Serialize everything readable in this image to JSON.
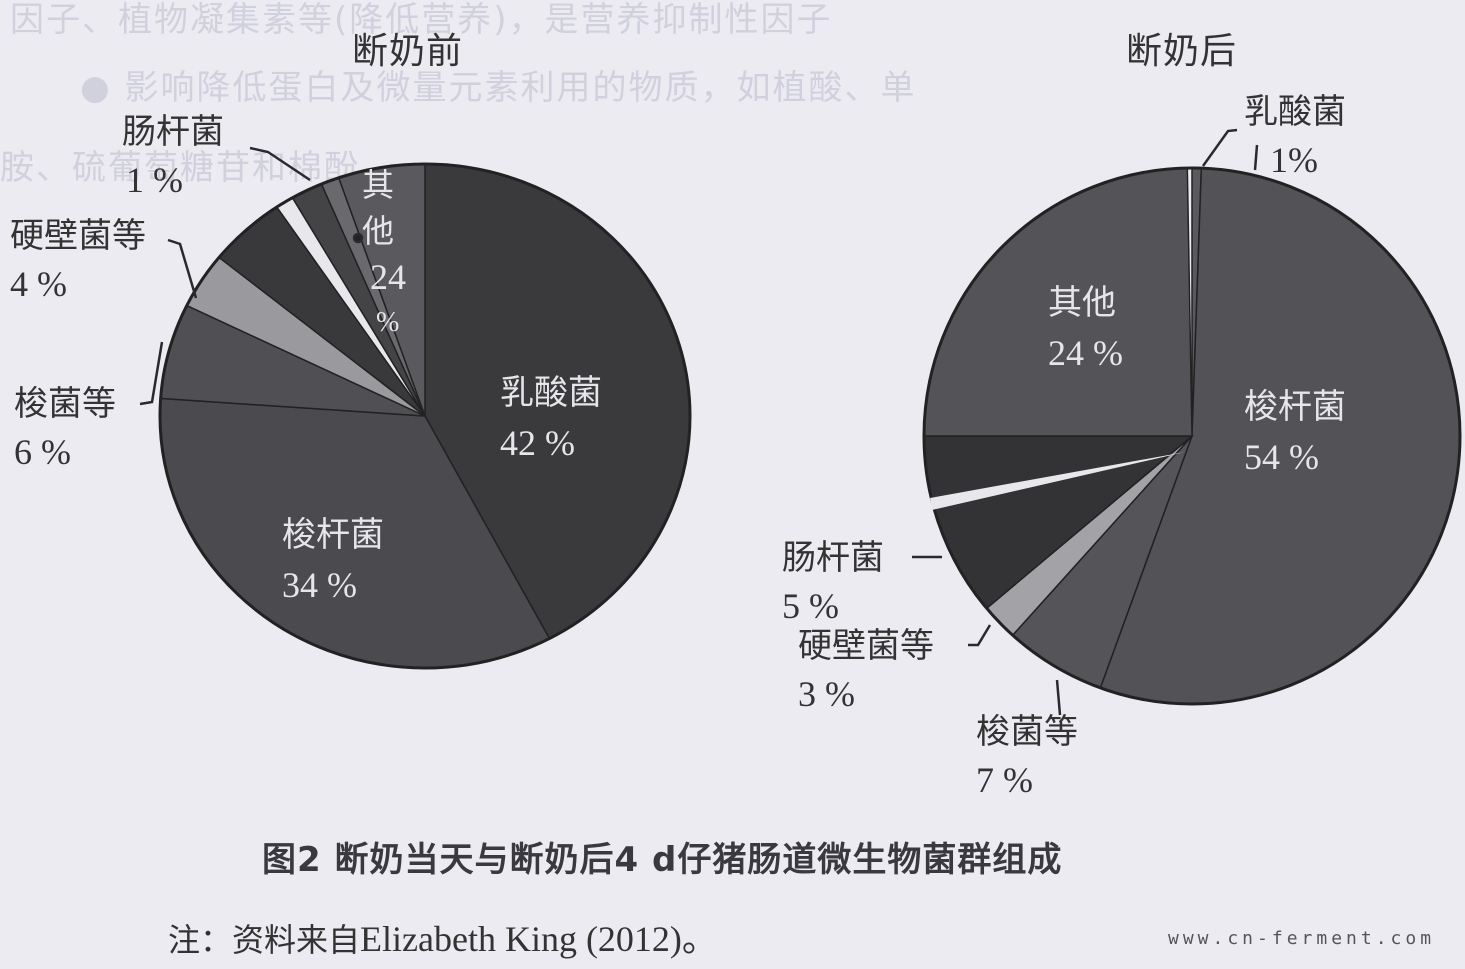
{
  "figure": {
    "caption": "图2 断奶当天与断奶后4 d仔猪肠道微生物菌群组成",
    "note_prefix": "注：资料来自",
    "note_source": "Elizabeth King (2012)。",
    "watermark": "www.cn-ferment.com"
  },
  "chart_data": [
    {
      "type": "pie",
      "title": "断奶前",
      "slices": [
        {
          "label": "乳酸菌",
          "value": 42,
          "value_label": "42 %",
          "color": "#3a3a3d",
          "start_deg": 0,
          "end_deg": 152
        },
        {
          "label": "梭杆菌",
          "value": 34,
          "value_label": "34 %",
          "color": "#4b4a4e",
          "start_deg": 152,
          "end_deg": 274
        },
        {
          "label": "梭菌等",
          "value": 6,
          "value_label": "6 %",
          "color": "#505054",
          "start_deg": 274,
          "end_deg": 296
        },
        {
          "label": "硬壁菌等",
          "value": 4,
          "value_label": "4 %",
          "color": "#9a9a9e",
          "start_deg": 296,
          "end_deg": 309
        },
        {
          "label": "",
          "value": null,
          "value_label": "",
          "color": "#39393c",
          "start_deg": 309,
          "end_deg": 326
        },
        {
          "label": "肠杆菌",
          "value": 1,
          "value_label": "1 %",
          "color": "#e8e8ec",
          "start_deg": 326,
          "end_deg": 330
        },
        {
          "label": "",
          "value": null,
          "value_label": "",
          "color": "#444447",
          "start_deg": 330,
          "end_deg": 337
        },
        {
          "label": "",
          "value": null,
          "value_label": "",
          "color": "#6a6a6e",
          "start_deg": 337,
          "end_deg": 341
        },
        {
          "label": "其他",
          "value": 24,
          "value_label": "24 %",
          "color": "#5a5a5e",
          "start_deg": 341,
          "end_deg": 360
        }
      ]
    },
    {
      "type": "pie",
      "title": "断奶后",
      "slices": [
        {
          "label": "乳酸菌",
          "value": 1,
          "value_label": "1%",
          "color": "#5a5a5e",
          "start_deg": 0,
          "end_deg": 2
        },
        {
          "label": "梭杆菌",
          "value": 54,
          "value_label": "54 %",
          "color": "#535357",
          "start_deg": 2,
          "end_deg": 200
        },
        {
          "label": "梭菌等",
          "value": 7,
          "value_label": "7 %",
          "color": "#555559",
          "start_deg": 200,
          "end_deg": 222
        },
        {
          "label": "硬壁菌等",
          "value": 3,
          "value_label": "3 %",
          "color": "#a3a3a7",
          "start_deg": 222,
          "end_deg": 230
        },
        {
          "label": "肠杆菌",
          "value": 5,
          "value_label": "5 %",
          "color": "#333336",
          "start_deg": 230,
          "end_deg": 270
        },
        {
          "label": "其他",
          "value": 24,
          "value_label": "24 %",
          "color": "#545458",
          "start_deg": 270,
          "end_deg": 359
        }
      ]
    }
  ],
  "charts": {
    "left": {
      "title": "断奶前",
      "labels": {
        "enterobacter": {
          "name": "肠杆菌",
          "pct": "1 %"
        },
        "firmicutes": {
          "name": "硬壁菌等",
          "pct": "4 %"
        },
        "clostridium": {
          "name": "梭菌等",
          "pct": "6 %"
        },
        "lactobacillus": {
          "name": "乳酸菌",
          "pct": "42 %"
        },
        "fusobacterium": {
          "name": "梭杆菌",
          "pct": "34 %"
        },
        "other": {
          "name1": "其",
          "name2": "他",
          "pct1": "24",
          "pct2": "%"
        }
      }
    },
    "right": {
      "title": "断奶后",
      "labels": {
        "lactobacillus": {
          "name": "乳酸菌",
          "pct": "1%"
        },
        "other": {
          "name": "其他",
          "pct": "24 %"
        },
        "fusobacterium": {
          "name": "梭杆菌",
          "pct": "54 %"
        },
        "enterobacter": {
          "name": "肠杆菌",
          "pct": "5 %"
        },
        "firmicutes": {
          "name": "硬壁菌等",
          "pct": "3 %"
        },
        "clostridium": {
          "name": "梭菌等",
          "pct": "7 %"
        }
      }
    }
  }
}
